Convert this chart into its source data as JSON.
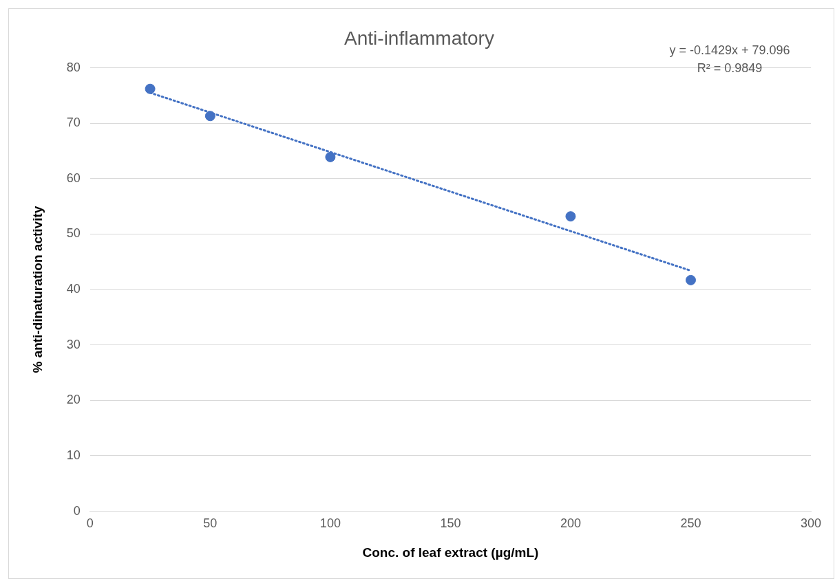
{
  "chart_data": {
    "type": "scatter",
    "title": "Anti-inflammatory",
    "xlabel": "Conc. of leaf extract (µg/mL)",
    "ylabel": "% anti-dinaturation activity",
    "xlim": [
      0,
      300
    ],
    "xticks": [
      0,
      50,
      100,
      150,
      200,
      250,
      300
    ],
    "ylim": [
      0,
      80
    ],
    "yticks": [
      0,
      10,
      20,
      30,
      40,
      50,
      60,
      70,
      80
    ],
    "grid": "y",
    "legend": false,
    "series": [
      {
        "color": "#4472c4",
        "marker": "circle",
        "x": [
          25,
          50,
          100,
          200,
          250
        ],
        "values": [
          76.2,
          71.3,
          63.9,
          53.2,
          41.7
        ]
      },
      {
        "type": "line",
        "color": "#4472c4",
        "marker": "none",
        "line_style": "dotted",
        "x": [
          25,
          250
        ],
        "values": [
          75.5,
          43.4
        ]
      }
    ],
    "annotations": [
      "y = -0.1429x + 79.096",
      "R² = 0.9849"
    ]
  }
}
